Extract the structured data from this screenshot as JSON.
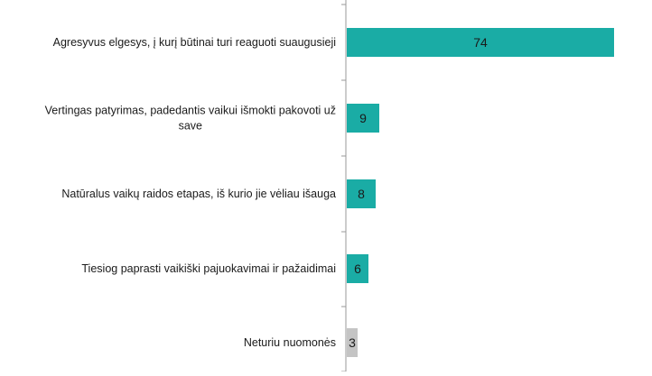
{
  "chart_data": {
    "type": "bar",
    "orientation": "horizontal",
    "categories": [
      "Agresyvus elgesys, į kurį būtinai turi reaguoti suaugusieji",
      "Vertingas patyrimas, padedantis vaikui išmokti pakovoti už save",
      "Natūralus vaikų raidos etapas, iš kurio jie vėliau išauga",
      "Tiesiog paprasti vaikiški pajuokavimai ir pažaidimai",
      "Neturiu nuomonės"
    ],
    "values": [
      74,
      9,
      8,
      6,
      3
    ],
    "data_labels": [
      "74",
      "9",
      "8",
      "6",
      "3"
    ],
    "colors": [
      "#1aaca5",
      "#1aaca5",
      "#1aaca5",
      "#1aaca5",
      "#c4c4c4"
    ],
    "axis_color": "#999999",
    "xlim": [
      0,
      80
    ],
    "title": "",
    "xlabel": "",
    "ylabel": "",
    "grid": false,
    "legend": false
  }
}
